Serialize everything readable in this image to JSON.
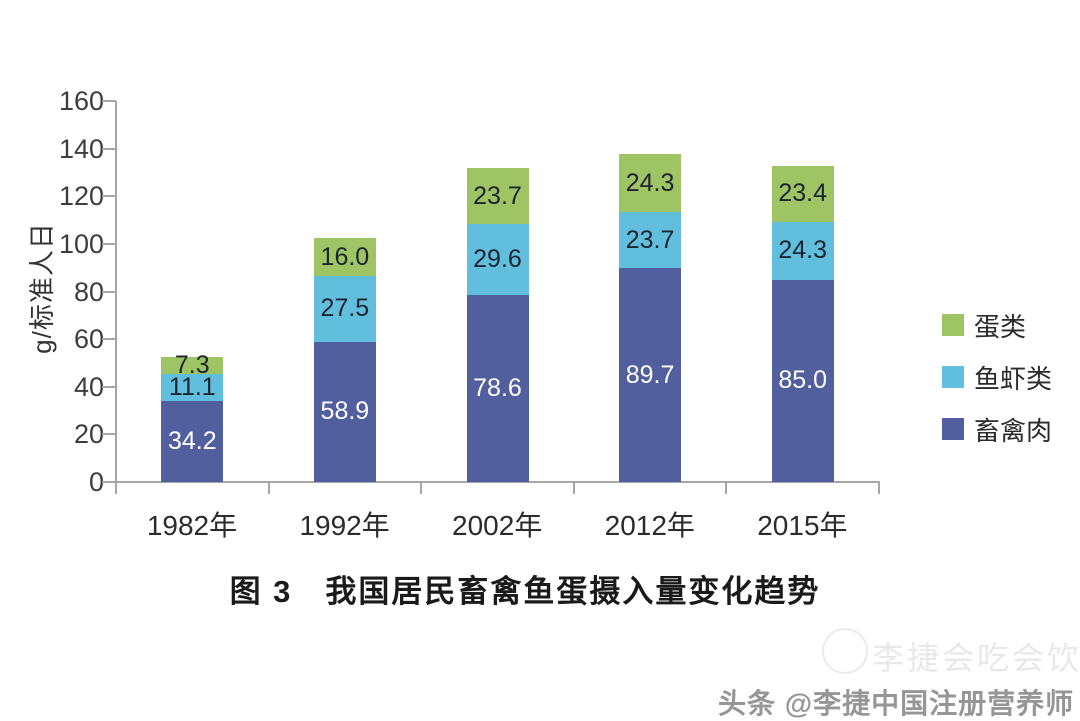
{
  "chart_data": {
    "type": "bar",
    "stacked": true,
    "title": "图 3　我国居民畜禽鱼蛋摄入量变化趋势",
    "ylabel": "g/标准人日",
    "xlabel": "",
    "ylim": [
      0,
      160
    ],
    "yticks": [
      0,
      20,
      40,
      60,
      80,
      100,
      120,
      140,
      160
    ],
    "grid": false,
    "legend_position": "right",
    "categories": [
      "1982年",
      "1992年",
      "2002年",
      "2012年",
      "2015年"
    ],
    "series": [
      {
        "name": "畜禽肉",
        "color": "#515f9e",
        "label_color": "#ffffff",
        "values": [
          34.2,
          58.9,
          78.6,
          89.7,
          85.0
        ],
        "labels": [
          "34.2",
          "58.9",
          "78.6",
          "89.7",
          "85.0"
        ]
      },
      {
        "name": "鱼虾类",
        "color": "#61bedd",
        "label_color": "#1c2430",
        "values": [
          11.1,
          27.5,
          29.6,
          23.7,
          24.3
        ],
        "labels": [
          "11.1",
          "27.5",
          "29.6",
          "23.7",
          "24.3"
        ]
      },
      {
        "name": "蛋类",
        "color": "#9fc464",
        "label_color": "#1c2430",
        "values": [
          7.3,
          16.0,
          23.7,
          24.3,
          23.4
        ],
        "labels": [
          "7.3",
          "16.0",
          "23.7",
          "24.3",
          "23.4"
        ]
      }
    ]
  },
  "caption": "图 3　我国居民畜禽鱼蛋摄入量变化趋势",
  "watermarks": {
    "faint": "李捷会吃会饮",
    "bottom": "头条 @李捷中国注册营养师"
  },
  "axis": {
    "line_color": "#a6a6a6",
    "tick_label_color": "#3d3d3d"
  }
}
